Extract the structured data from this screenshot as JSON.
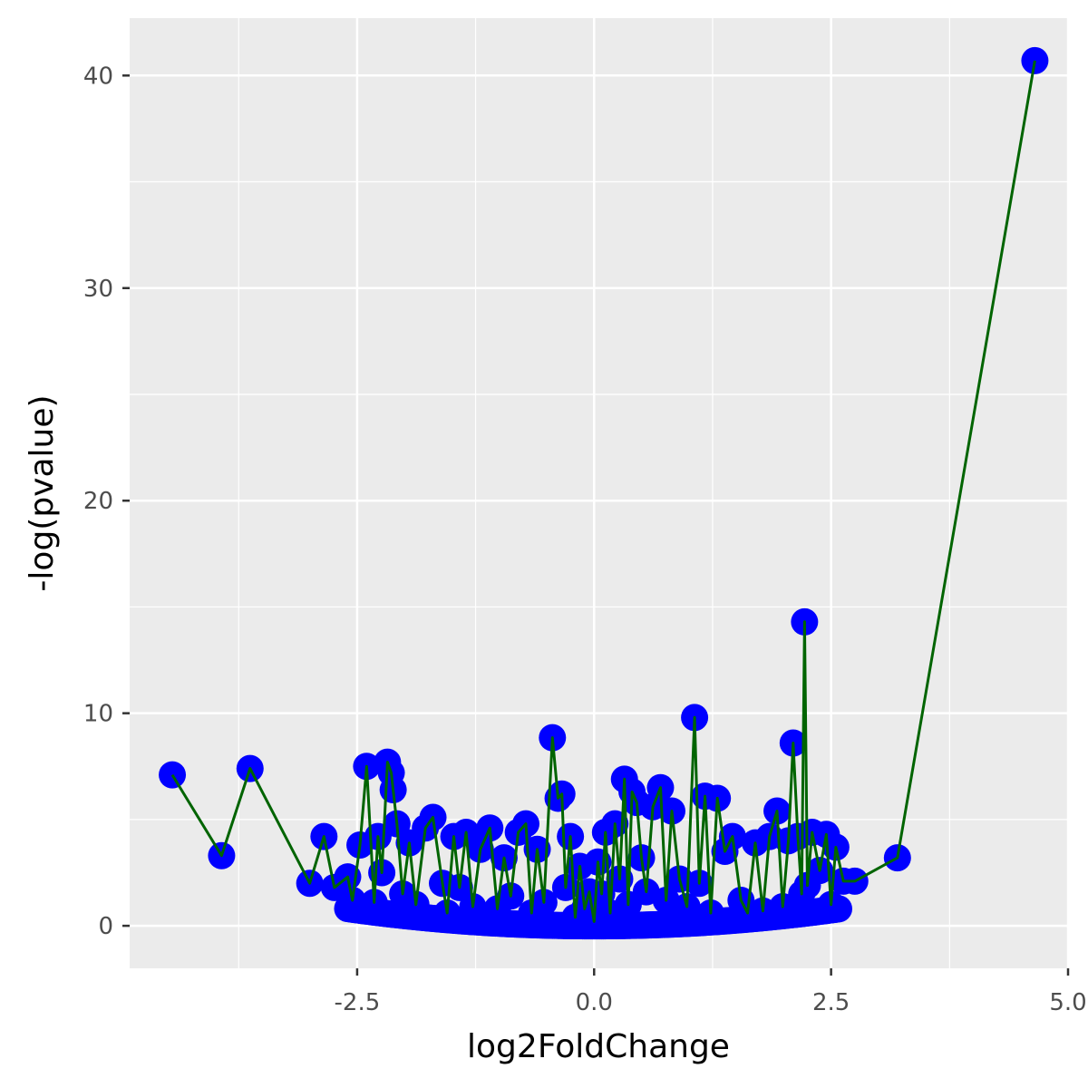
{
  "chart_data": {
    "type": "scatter",
    "xlabel": "log2FoldChange",
    "ylabel": "-log(pvalue)",
    "xlim": [
      -4.9,
      5.0
    ],
    "ylim": [
      -2.0,
      42.7
    ],
    "x_ticks": [
      -2.5,
      0.0,
      2.5,
      5.0
    ],
    "x_tick_labels": [
      "-2.5",
      "0.0",
      "2.5",
      "5.0"
    ],
    "y_ticks": [
      0,
      10,
      20,
      30,
      40
    ],
    "y_tick_labels": [
      "0",
      "10",
      "20",
      "30",
      "40"
    ],
    "grid": true,
    "legend": "none",
    "point_color": "#0000ff",
    "line_color": "#006400",
    "panel_color": "#ebebeb",
    "series": [
      {
        "x": [
          -4.45,
          -3.93,
          -3.63,
          -3.0,
          -2.85,
          -2.74,
          -2.6,
          -2.55,
          -2.47,
          -2.4,
          -2.32,
          -2.28,
          -2.24,
          -2.18,
          -2.14,
          -2.12,
          -2.08,
          -2.02,
          -1.95,
          -1.88,
          -1.78,
          -1.7,
          -1.6,
          -1.55,
          -1.48,
          -1.42,
          -1.35,
          -1.28,
          -1.2,
          -1.1,
          -1.02,
          -0.95,
          -0.88,
          -0.8,
          -0.72,
          -0.66,
          -0.6,
          -0.53,
          -0.44,
          -0.38,
          -0.34,
          -0.3,
          -0.25,
          -0.2,
          -0.15,
          -0.1,
          -0.05,
          0.0,
          0.04,
          0.08,
          0.12,
          0.17,
          0.22,
          0.27,
          0.32,
          0.36,
          0.4,
          0.45,
          0.5,
          0.55,
          0.62,
          0.7,
          0.76,
          0.82,
          0.9,
          0.98,
          1.06,
          1.11,
          1.17,
          1.23,
          1.3,
          1.38,
          1.46,
          1.55,
          1.62,
          1.7,
          1.78,
          1.85,
          1.93,
          1.99,
          2.05,
          2.1,
          2.15,
          2.19,
          2.22,
          2.25,
          2.3,
          2.38,
          2.45,
          2.5,
          2.55,
          2.63,
          2.75,
          3.2,
          4.65
        ],
        "y": [
          7.1,
          3.3,
          7.4,
          2.0,
          4.2,
          1.8,
          2.3,
          1.2,
          3.8,
          7.5,
          1.1,
          4.2,
          2.5,
          7.7,
          7.2,
          6.4,
          4.8,
          1.5,
          3.9,
          1.0,
          4.6,
          5.1,
          2.0,
          0.6,
          4.2,
          1.8,
          4.4,
          0.9,
          3.6,
          4.6,
          0.8,
          3.2,
          1.4,
          4.4,
          4.8,
          0.6,
          3.6,
          1.1,
          8.85,
          6.0,
          6.2,
          1.8,
          4.2,
          0.4,
          2.8,
          0.8,
          1.6,
          0.2,
          3.0,
          1.5,
          4.4,
          0.6,
          4.8,
          2.2,
          6.9,
          1.0,
          6.3,
          5.8,
          3.2,
          1.6,
          5.6,
          6.5,
          1.2,
          5.4,
          2.2,
          0.9,
          9.8,
          2.0,
          6.1,
          0.6,
          6.0,
          3.5,
          4.2,
          1.2,
          0.6,
          3.9,
          0.7,
          4.2,
          5.4,
          0.9,
          4.0,
          8.6,
          4.2,
          1.5,
          14.3,
          1.9,
          4.4,
          2.6,
          4.3,
          1.0,
          3.7,
          2.1,
          2.1,
          3.2,
          40.7
        ]
      }
    ]
  }
}
